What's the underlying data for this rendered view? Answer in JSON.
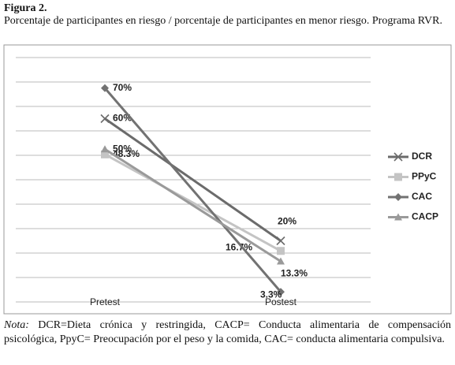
{
  "figure": {
    "label": "Figura 2.",
    "caption": "Porcentaje de participantes en riesgo / porcentaje de participantes en menor  riesgo. Programa RVR.",
    "note_label": "Nota:",
    "note": "DCR=Dieta crónica y restringida, CACP= Conducta alimentaria de compensación psicológica, PpyC= Preocupación por el peso y la comida, CAC= conducta alimentaria compulsiva."
  },
  "chart_data": {
    "type": "line",
    "categories": [
      "Pretest",
      "Postest"
    ],
    "ylim": [
      0,
      80
    ],
    "grid": true,
    "legend": "right",
    "series": [
      {
        "name": "DCR",
        "color": "#6b6b6b",
        "marker": "x",
        "values": [
          60,
          20
        ],
        "value_labels": [
          "60%",
          "20%"
        ]
      },
      {
        "name": "PPyC",
        "color": "#c4c4c4",
        "marker": "square",
        "values": [
          48.3,
          16.7
        ],
        "value_labels": [
          "48.3%",
          "16.7%"
        ]
      },
      {
        "name": "CAC",
        "color": "#727272",
        "marker": "diamond",
        "values": [
          70,
          3.3
        ],
        "value_labels": [
          "70%",
          "3.3%"
        ]
      },
      {
        "name": "CACP",
        "color": "#9a9a9a",
        "marker": "triangle",
        "values": [
          50,
          13.3
        ],
        "value_labels": [
          "50%",
          "13.3%"
        ]
      }
    ]
  }
}
